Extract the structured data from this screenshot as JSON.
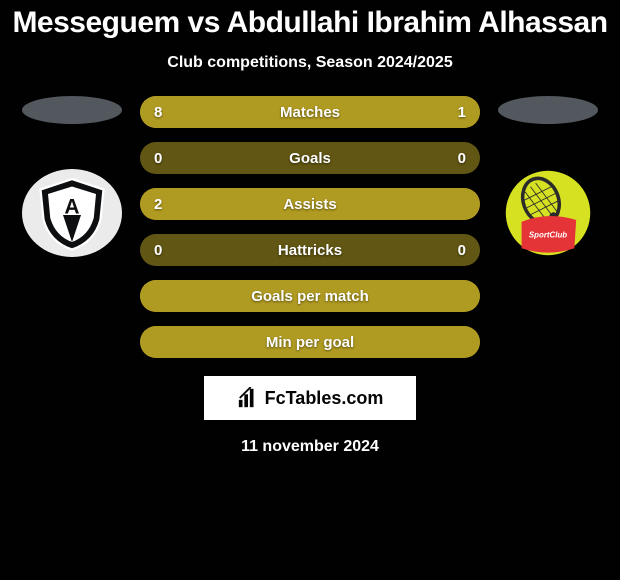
{
  "title": "Messeguem vs Abdullahi Ibrahim Alhassan",
  "subtitle": "Club competitions, Season 2024/2025",
  "attribution": "FcTables.com",
  "date": "11 november 2024",
  "colors": {
    "background": "#010101",
    "bar_base": "#615613",
    "bar_fill": "#b09b22",
    "text": "#ffffff",
    "ellipse": "#52585e",
    "left_badge_bg": "#ebebeb",
    "right_badge_bg": "#d6e122",
    "right_badge_red": "#e43438",
    "attribution_bg": "#ffffff",
    "attribution_text": "#050505"
  },
  "typography": {
    "title_fontsize": 30,
    "subtitle_fontsize": 16,
    "bar_label_fontsize": 15,
    "bar_val_fontsize": 15,
    "date_fontsize": 16
  },
  "ellipse": {
    "width": 100,
    "height": 28
  },
  "bars": [
    {
      "label": "Matches",
      "left": "8",
      "right": "1",
      "left_pct": 85,
      "right_pct": 15
    },
    {
      "label": "Goals",
      "left": "0",
      "right": "0",
      "left_pct": 0,
      "right_pct": 0
    },
    {
      "label": "Assists",
      "left": "2",
      "right": "",
      "left_pct": 100,
      "right_pct": 0
    },
    {
      "label": "Hattricks",
      "left": "0",
      "right": "0",
      "left_pct": 0,
      "right_pct": 0
    },
    {
      "label": "Goals per match",
      "left": "",
      "right": "",
      "left_pct": 100,
      "right_pct": 0
    },
    {
      "label": "Min per goal",
      "left": "",
      "right": "",
      "left_pct": 100,
      "right_pct": 0
    }
  ]
}
